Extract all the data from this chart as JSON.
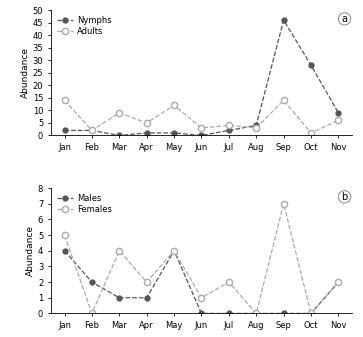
{
  "months": [
    "Jan",
    "Feb",
    "Mar",
    "Apr",
    "May",
    "Jun",
    "Jul",
    "Aug",
    "Sep",
    "Oct",
    "Nov"
  ],
  "nymphs": [
    2,
    2,
    0,
    1,
    1,
    0,
    2,
    4,
    46,
    28,
    9
  ],
  "adults": [
    14,
    2,
    9,
    5,
    12,
    3,
    4,
    3,
    14,
    1,
    6
  ],
  "males": [
    4,
    2,
    1,
    1,
    4,
    0,
    0,
    0,
    0,
    0,
    2
  ],
  "females": [
    5,
    0,
    4,
    2,
    4,
    1,
    2,
    0,
    7,
    0,
    2
  ],
  "ylim_a": [
    0,
    50
  ],
  "yticks_a": [
    0,
    5,
    10,
    15,
    20,
    25,
    30,
    35,
    40,
    45,
    50
  ],
  "ylim_b": [
    0,
    8
  ],
  "yticks_b": [
    0,
    1,
    2,
    3,
    4,
    5,
    6,
    7,
    8
  ],
  "ylabel": "Abundance",
  "legend_a": [
    "Nymphs",
    "Adults"
  ],
  "legend_b": [
    "Males",
    "Females"
  ],
  "panel_a_label": "a",
  "panel_b_label": "b",
  "line_color_dark": "#555555",
  "line_color_light": "#aaaaaa",
  "linestyle": "--",
  "marker_filled": "o",
  "marker_open": "o",
  "markersize": 3.5,
  "linewidth": 0.9,
  "font_size_tick": 6,
  "font_size_label": 6.5,
  "font_size_legend": 6,
  "font_size_panel": 7
}
